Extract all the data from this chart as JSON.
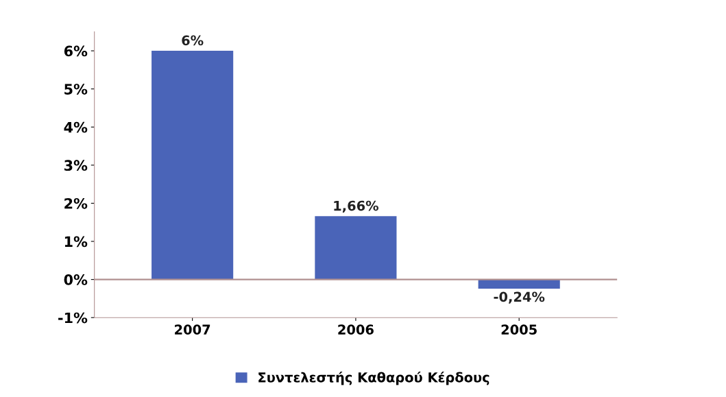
{
  "chart_data": {
    "type": "bar",
    "categories": [
      "2007",
      "2006",
      "2005"
    ],
    "series": [
      {
        "name": "Συντελεστής Καθαρού Κέρδους",
        "color": "#4a64b8",
        "values": [
          6,
          1.66,
          -0.24
        ],
        "value_labels": [
          "6%",
          "1,66%",
          "-0,24%"
        ]
      }
    ],
    "ylim": [
      -1,
      6.5
    ],
    "yticks": [
      {
        "value": -1,
        "label": "-1%"
      },
      {
        "value": 0,
        "label": "0%"
      },
      {
        "value": 1,
        "label": "1%"
      },
      {
        "value": 2,
        "label": "2%"
      },
      {
        "value": 3,
        "label": "3%"
      },
      {
        "value": 4,
        "label": "4%"
      },
      {
        "value": 5,
        "label": "5%"
      },
      {
        "value": 6,
        "label": "6%"
      }
    ],
    "ref_lines": [
      {
        "axis": "y",
        "value": 0,
        "color": "#b09090"
      }
    ],
    "grid": false,
    "legend": "bottom"
  }
}
